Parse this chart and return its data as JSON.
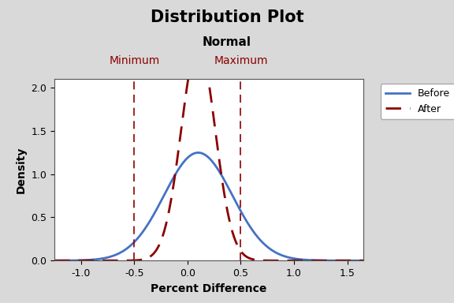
{
  "title": "Distribution Plot",
  "subtitle": "Normal",
  "xlabel": "Percent Difference",
  "ylabel": "Density",
  "before_mean": 0.1,
  "before_std": 0.32,
  "after_mean": 0.1,
  "after_std": 0.16,
  "vline_min": -0.5,
  "vline_max": 0.5,
  "vline_label_min": "Minimum",
  "vline_label_max": "Maximum",
  "vline_color": "#8B0000",
  "before_color": "#4472C4",
  "after_color": "#8B0000",
  "xlim": [
    -1.25,
    1.65
  ],
  "ylim": [
    0.0,
    2.1
  ],
  "xticks": [
    -1.0,
    -0.5,
    0.0,
    0.5,
    1.0,
    1.5
  ],
  "yticks": [
    0.0,
    0.5,
    1.0,
    1.5,
    2.0
  ],
  "background_color": "#d9d9d9",
  "plot_bg_color": "#ffffff",
  "title_fontsize": 15,
  "subtitle_fontsize": 11,
  "label_fontsize": 10,
  "tick_fontsize": 9,
  "legend_fontsize": 9
}
